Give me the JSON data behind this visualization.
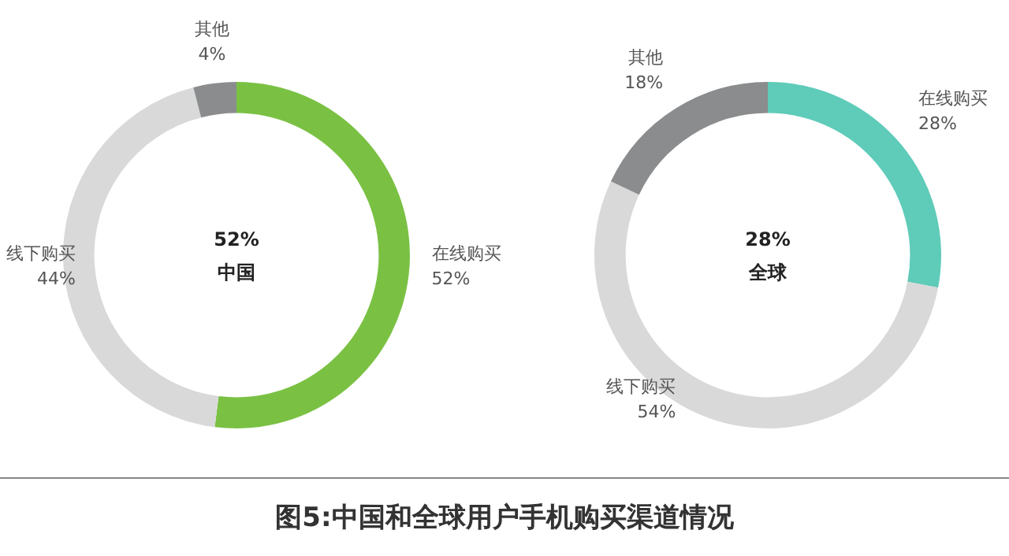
{
  "chart_data": [
    {
      "type": "donut",
      "categories": [
        "在线购买",
        "线下购买",
        "其他"
      ],
      "values": [
        52,
        44,
        4
      ],
      "colors": [
        "#7ac143",
        "#d9d9d9",
        "#8a8c8e"
      ],
      "value_labels": [
        "52%",
        "44%",
        "4%"
      ],
      "annotations": [
        "52%",
        "中国"
      ]
    },
    {
      "type": "donut",
      "categories": [
        "在线购买",
        "线下购买",
        "其他"
      ],
      "values": [
        28,
        54,
        18
      ],
      "colors": [
        "#5fcbb9",
        "#d9d9d9",
        "#8a8c8e"
      ],
      "value_labels": [
        "28%",
        "54%",
        "18%"
      ],
      "annotations": [
        "28%",
        "全球",
        "图5:中国和全球用户手机购买渠道情况"
      ]
    }
  ]
}
